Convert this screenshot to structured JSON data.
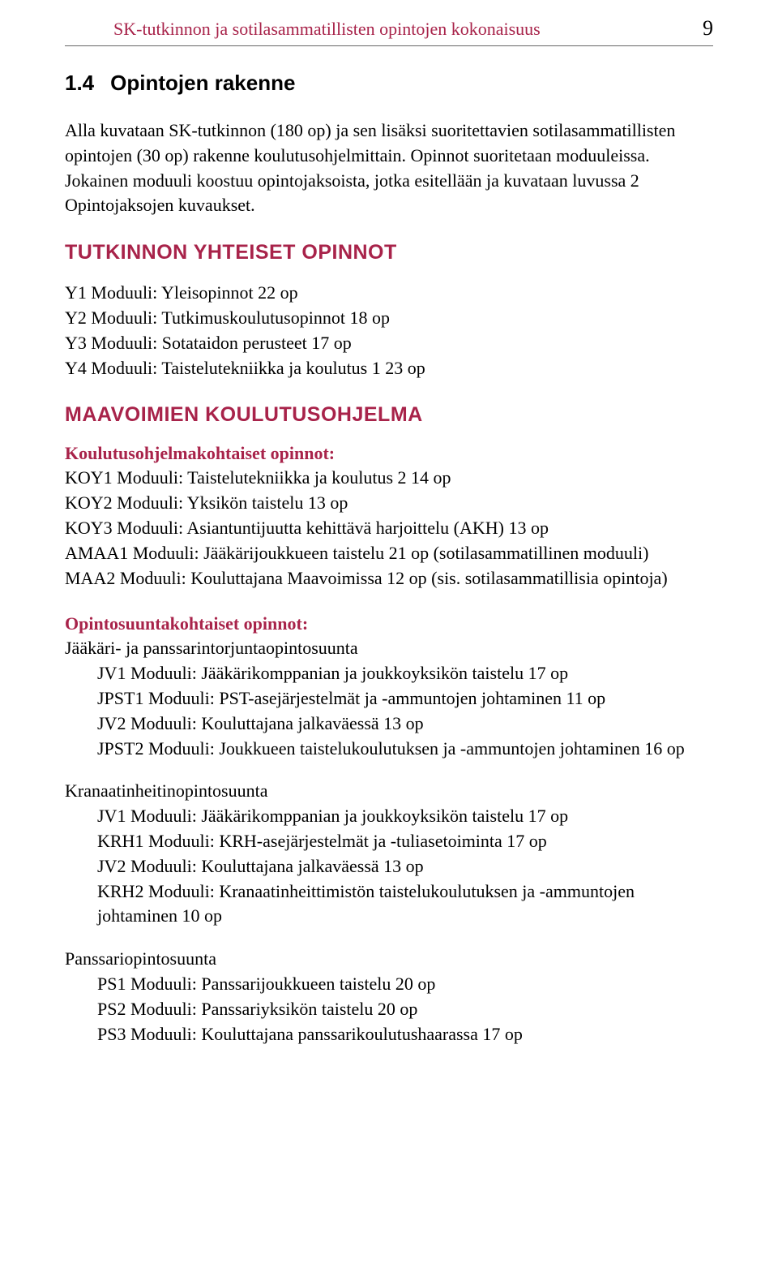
{
  "page": {
    "header_title": "SK-tutkinnon ja sotilasammatillisten opintojen kokonaisuus",
    "page_number": "9"
  },
  "section": {
    "number": "1.4",
    "title": "Opintojen rakenne"
  },
  "intro_paragraph": "Alla kuvataan SK-tutkinnon (180 op) ja sen lisäksi suoritettavien sotilasammatillisten opintojen (30 op) rakenne koulutusohjelmittain. Opinnot suoritetaan moduuleissa. Jokainen moduuli koostuu opintojaksoista, jotka esitellään ja kuvataan luvussa 2 Opintojaksojen kuvaukset.",
  "common_studies": {
    "heading": "TUTKINNON YHTEISET OPINNOT",
    "items": [
      "Y1 Moduuli: Yleisopinnot 22 op",
      "Y2 Moduuli: Tutkimuskoulutusopinnot 18 op",
      "Y3 Moduuli: Sotataidon perusteet 17 op",
      "Y4 Moduuli: Taistelutekniikka ja koulutus 1 23 op"
    ]
  },
  "army_program": {
    "heading": "MAAVOIMIEN KOULUTUSOHJELMA",
    "program_section": {
      "subheading": "Koulutusohjelmakohtaiset opinnot:",
      "items": [
        "KOY1 Moduuli: Taistelutekniikka ja koulutus 2 14 op",
        "KOY2 Moduuli: Yksikön taistelu 13 op",
        "KOY3 Moduuli: Asiantuntijuutta kehittävä harjoittelu (AKH) 13 op",
        "AMAA1 Moduuli: Jääkärijoukkueen taistelu 21 op (sotilasammatillinen moduuli)",
        "MAA2 Moduuli: Kouluttajana Maavoimissa 12 op (sis. sotilasammatillisia opintoja)"
      ]
    },
    "track_section": {
      "subheading": "Opintosuuntakohtaiset opinnot:",
      "tracks": [
        {
          "name": "Jääkäri- ja panssarintorjuntaopintosuunta",
          "items": [
            "JV1 Moduuli: Jääkärikomppanian ja joukkoyksikön taistelu 17 op",
            "JPST1 Moduuli: PST-asejärjestelmät ja -ammuntojen johtaminen 11 op",
            "JV2 Moduuli: Kouluttajana jalkaväessä 13 op",
            "JPST2 Moduuli: Joukkueen taistelukoulutuksen ja -ammuntojen johtaminen 16 op"
          ]
        },
        {
          "name": "Kranaatinheitinopintosuunta",
          "items": [
            "JV1 Moduuli: Jääkärikomppanian ja joukkoyksikön taistelu 17 op",
            "KRH1 Moduuli: KRH-asejärjestelmät ja -tuliasetoiminta 17 op",
            "JV2 Moduuli: Kouluttajana jalkaväessä 13 op",
            "KRH2 Moduuli: Kranaatinheittimistön taistelukoulutuksen ja -ammuntojen johtaminen 10 op"
          ]
        },
        {
          "name": "Panssariopintosuunta",
          "items": [
            "PS1 Moduuli: Panssarijoukkueen taistelu 20 op",
            "PS2 Moduuli: Panssariyksikön taistelu 20 op",
            "PS3 Moduuli: Kouluttajana panssarikoulutushaarassa 17 op"
          ]
        }
      ]
    }
  },
  "colors": {
    "accent": "#a8234a",
    "text": "#000000",
    "background": "#ffffff",
    "rule": "#666666"
  },
  "typography": {
    "body_fontsize": 22,
    "heading_fontsize": 25,
    "header_fontsize": 22,
    "pagenum_fontsize": 26
  }
}
